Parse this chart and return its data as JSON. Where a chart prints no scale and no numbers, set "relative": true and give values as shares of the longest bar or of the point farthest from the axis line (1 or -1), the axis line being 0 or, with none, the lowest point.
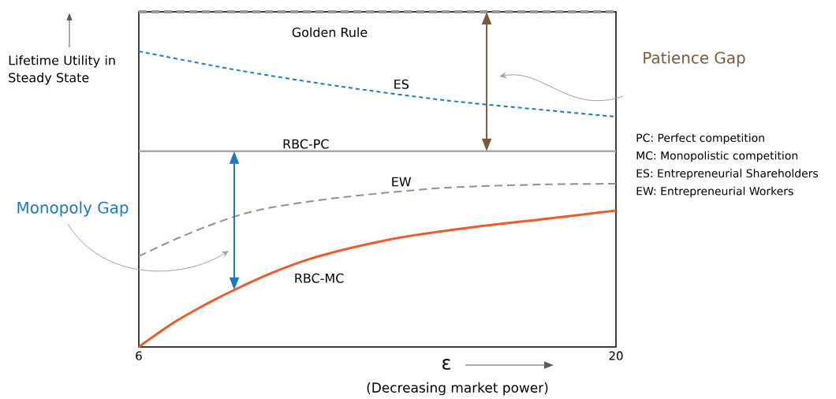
{
  "chart_data": {
    "type": "line",
    "relative": true,
    "xlabel": "ε",
    "ylabel": "Lifetime Utility in Steady State",
    "xlim": [
      6,
      20
    ],
    "xticks": [
      6,
      20
    ],
    "series": [
      {
        "name": "Golden Rule",
        "color": "#999999",
        "line_style": "dashed",
        "x": [
          6,
          20
        ],
        "values": [
          1,
          1
        ]
      },
      {
        "name": "ES",
        "color": "#1a7ac4",
        "line_style": "dotted",
        "x": [
          6,
          9,
          12,
          15,
          18,
          20
        ],
        "values": [
          0.882,
          0.824,
          0.776,
          0.736,
          0.706,
          0.687
        ]
      },
      {
        "name": "RBC-PC",
        "color": "#a6a6a6",
        "line_style": "solid",
        "x": [
          6,
          20
        ],
        "values": [
          0.584,
          0.584
        ]
      },
      {
        "name": "EW",
        "color": "#a08c7c",
        "line_style": "dashed",
        "x": [
          6,
          7,
          8,
          9,
          10,
          12,
          15,
          18,
          20
        ],
        "values": [
          0.271,
          0.318,
          0.36,
          0.395,
          0.418,
          0.447,
          0.475,
          0.485,
          0.487
        ]
      },
      {
        "name": "RBC-MC",
        "color": "#f05a28",
        "line_style": "solid",
        "x": [
          6,
          7,
          8,
          9,
          10,
          11,
          12,
          13,
          14,
          16,
          18,
          20
        ],
        "values": [
          0,
          0.071,
          0.129,
          0.18,
          0.225,
          0.262,
          0.29,
          0.313,
          0.332,
          0.36,
          0.383,
          0.407
        ]
      }
    ],
    "annotations": [
      "Patience Gap",
      "Monopoly Gap",
      "PC: Perfect competition",
      "MC: Monopolistic competition",
      "ES: Entrepreneurial Shareholders",
      "EW: Entrepreneurial Workers",
      "(Decreasing market power)"
    ]
  }
}
